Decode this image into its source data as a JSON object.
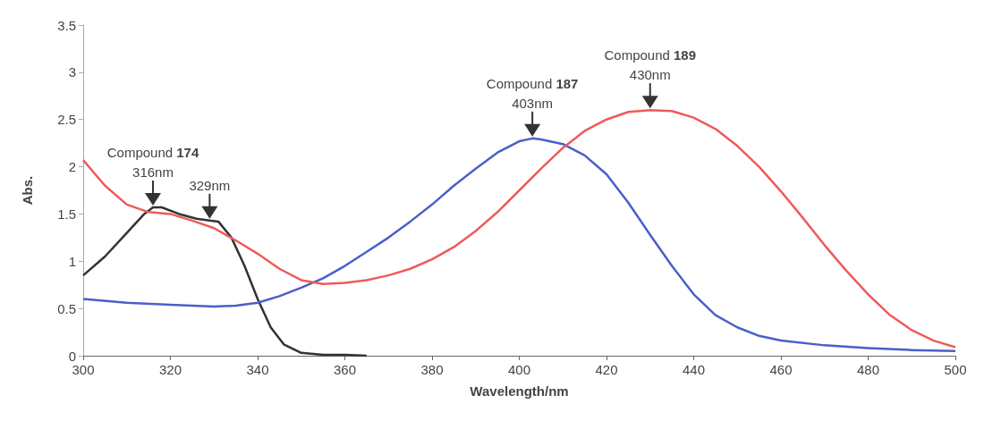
{
  "chart_data": {
    "type": "line",
    "xlabel": "Wavelength/nm",
    "ylabel": "Abs.",
    "xlim": [
      300,
      500
    ],
    "xticks": [
      300,
      320,
      340,
      360,
      380,
      400,
      420,
      440,
      460,
      480,
      500
    ],
    "ylim": [
      0,
      3.5
    ],
    "yticks": [
      0,
      0.5,
      1,
      1.5,
      2,
      2.5,
      3,
      3.5
    ],
    "grid": false,
    "marker": "none",
    "line_style": "solid",
    "series": [
      {
        "color": "#333333",
        "x": [
          300,
          305,
          310,
          314,
          316,
          318,
          322,
          326,
          329,
          331,
          334,
          337,
          340,
          343,
          346,
          350,
          355,
          360,
          365
        ],
        "values": [
          0.85,
          1.05,
          1.3,
          1.5,
          1.57,
          1.57,
          1.5,
          1.45,
          1.43,
          1.42,
          1.25,
          0.95,
          0.6,
          0.3,
          0.12,
          0.03,
          0.01,
          0.01,
          0.0
        ]
      },
      {
        "color": "#4a5fc8",
        "x": [
          300,
          310,
          320,
          330,
          335,
          340,
          345,
          350,
          355,
          360,
          365,
          370,
          375,
          380,
          385,
          390,
          395,
          400,
          403,
          405,
          410,
          415,
          420,
          425,
          430,
          435,
          440,
          445,
          450,
          455,
          460,
          470,
          480,
          490,
          500
        ],
        "values": [
          0.6,
          0.56,
          0.54,
          0.52,
          0.53,
          0.56,
          0.63,
          0.72,
          0.82,
          0.95,
          1.1,
          1.25,
          1.42,
          1.6,
          1.8,
          1.98,
          2.15,
          2.27,
          2.3,
          2.29,
          2.24,
          2.12,
          1.92,
          1.62,
          1.28,
          0.95,
          0.65,
          0.43,
          0.3,
          0.21,
          0.16,
          0.11,
          0.08,
          0.06,
          0.05
        ]
      },
      {
        "color": "#f05a5a",
        "x": [
          300,
          305,
          310,
          315,
          320,
          325,
          330,
          335,
          340,
          345,
          350,
          355,
          360,
          365,
          370,
          375,
          380,
          385,
          390,
          395,
          400,
          405,
          410,
          415,
          420,
          425,
          430,
          435,
          440,
          445,
          450,
          455,
          460,
          465,
          470,
          475,
          480,
          485,
          490,
          495,
          500
        ],
        "values": [
          2.07,
          1.8,
          1.6,
          1.52,
          1.5,
          1.43,
          1.35,
          1.22,
          1.08,
          0.92,
          0.8,
          0.76,
          0.77,
          0.8,
          0.85,
          0.92,
          1.02,
          1.15,
          1.32,
          1.52,
          1.75,
          1.98,
          2.2,
          2.38,
          2.5,
          2.58,
          2.6,
          2.59,
          2.52,
          2.4,
          2.22,
          2.0,
          1.74,
          1.46,
          1.17,
          0.9,
          0.65,
          0.43,
          0.27,
          0.16,
          0.09
        ]
      }
    ],
    "annotations": [
      "Compound 174",
      {
        "text": "316nm",
        "x": 316,
        "y": 1.57
      },
      {
        "text": "329nm",
        "x": 329,
        "y": 1.43
      },
      "Compound 187",
      {
        "text": "403nm",
        "x": 403,
        "y": 2.3
      },
      "Compound 189",
      {
        "text": "430nm",
        "x": 430,
        "y": 2.6
      }
    ]
  }
}
